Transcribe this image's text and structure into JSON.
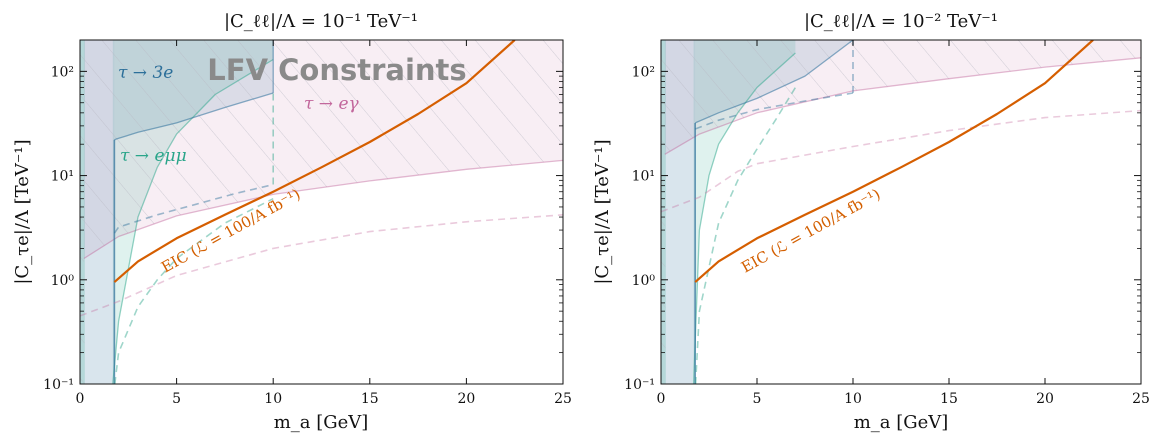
{
  "colors": {
    "eic": "#d55e00",
    "tau_3e": "#2c6f9a",
    "tau_emumu": "#2aa58a",
    "tau_egamma": "#c2679c",
    "watermark": "#8a8a8a"
  },
  "watermark": "LFV Constraints",
  "chart_data": [
    {
      "type": "line",
      "title": "|C_ℓℓ|/Λ = 10⁻¹ TeV⁻¹",
      "xlabel": "m_a [GeV]",
      "ylabel": "|C_τe|/Λ [TeV⁻¹]",
      "xlim": [
        0,
        25
      ],
      "ylim": [
        0.1,
        200
      ],
      "yscale": "log",
      "x_ticks": [
        "0",
        "5",
        "10",
        "15",
        "20",
        "25"
      ],
      "y_ticks": [
        "10⁻¹",
        "10⁰",
        "10¹",
        "10²"
      ],
      "annotations": {
        "tau_3e": "τ → 3e",
        "tau_emumu": "τ → eμμ",
        "tau_egamma": "τ → eγ",
        "eic": "EIC (ℒ = 100/A fb⁻¹)"
      },
      "series": [
        {
          "key": "eic",
          "x": [
            1.78,
            3,
            5,
            7.5,
            10,
            12.5,
            15,
            17.5,
            20,
            22.5
          ],
          "y": [
            0.95,
            1.5,
            2.5,
            4.2,
            7,
            12,
            21,
            39,
            77,
            200
          ]
        },
        {
          "key": "egamma_bound",
          "x": [
            0.2,
            2,
            5,
            10,
            15,
            20,
            25
          ],
          "y": [
            1.6,
            2.6,
            4.1,
            6.6,
            8.9,
            11.5,
            14
          ]
        },
        {
          "key": "egamma_dashed",
          "x": [
            0,
            2,
            5,
            10,
            15,
            20,
            25
          ],
          "y": [
            0.45,
            0.62,
            1.1,
            2.0,
            2.9,
            3.6,
            4.2
          ]
        },
        {
          "key": "emumu_bound",
          "x": [
            1.7,
            2,
            3,
            4,
            5,
            7,
            10
          ],
          "y": [
            0.1,
            0.4,
            4,
            12,
            25,
            60,
            130
          ]
        },
        {
          "key": "emumu_dashed",
          "x": [
            1.8,
            2,
            3,
            4,
            5,
            7.5,
            10
          ],
          "y": [
            0.1,
            0.2,
            0.55,
            1.0,
            1.6,
            3.5,
            6
          ]
        },
        {
          "key": "tau3e_bound",
          "x": [
            1.78,
            1.9,
            3,
            5,
            7.5,
            10
          ],
          "y": [
            22,
            22.5,
            26,
            32,
            45,
            62
          ]
        },
        {
          "key": "tau3e_dashed",
          "x": [
            1.78,
            2,
            4,
            6,
            8,
            10
          ],
          "y": [
            2.8,
            3.2,
            4.2,
            5.3,
            6.7,
            8.2
          ]
        }
      ]
    },
    {
      "type": "line",
      "title": "|C_ℓℓ|/Λ = 10⁻² TeV⁻¹",
      "xlabel": "m_a [GeV]",
      "ylabel": "|C_τe|/Λ [TeV⁻¹]",
      "xlim": [
        0,
        25
      ],
      "ylim": [
        0.1,
        200
      ],
      "yscale": "log",
      "x_ticks": [
        "0",
        "5",
        "10",
        "15",
        "20",
        "25"
      ],
      "y_ticks": [
        "10⁻¹",
        "10⁰",
        "10¹",
        "10²"
      ],
      "annotations": {
        "eic": "EIC (ℒ = 100/A fb⁻¹)"
      },
      "series": [
        {
          "key": "eic",
          "x": [
            1.78,
            3,
            5,
            7.5,
            10,
            12.5,
            15,
            17.5,
            20,
            22.5
          ],
          "y": [
            0.95,
            1.5,
            2.5,
            4.2,
            7,
            12,
            21,
            39,
            77,
            200
          ]
        },
        {
          "key": "egamma_bound",
          "x": [
            0.2,
            2,
            5,
            10,
            15,
            20,
            25
          ],
          "y": [
            16,
            25,
            40,
            65,
            85,
            110,
            135
          ]
        },
        {
          "key": "egamma_dashed",
          "x": [
            0,
            2,
            4,
            5,
            10,
            15,
            20,
            25
          ],
          "y": [
            4.5,
            6.2,
            11,
            13,
            19,
            27,
            36,
            42
          ]
        },
        {
          "key": "emumu_bound",
          "x": [
            1.7,
            2,
            2.5,
            3,
            4,
            5,
            7
          ],
          "y": [
            0.1,
            3,
            10,
            20,
            40,
            70,
            150
          ]
        },
        {
          "key": "emumu_dashed",
          "x": [
            1.8,
            2,
            3,
            4,
            5,
            6,
            7
          ],
          "y": [
            0.1,
            0.5,
            3.5,
            9,
            18,
            35,
            70
          ]
        },
        {
          "key": "tau3e_bound",
          "x": [
            1.78,
            3,
            5,
            7.5,
            10
          ],
          "y": [
            32,
            40,
            55,
            90,
            200
          ]
        },
        {
          "key": "tau3e_dashed",
          "x": [
            1.78,
            3,
            5,
            7.5,
            10
          ],
          "y": [
            28,
            34,
            43,
            52,
            62
          ]
        }
      ]
    }
  ]
}
